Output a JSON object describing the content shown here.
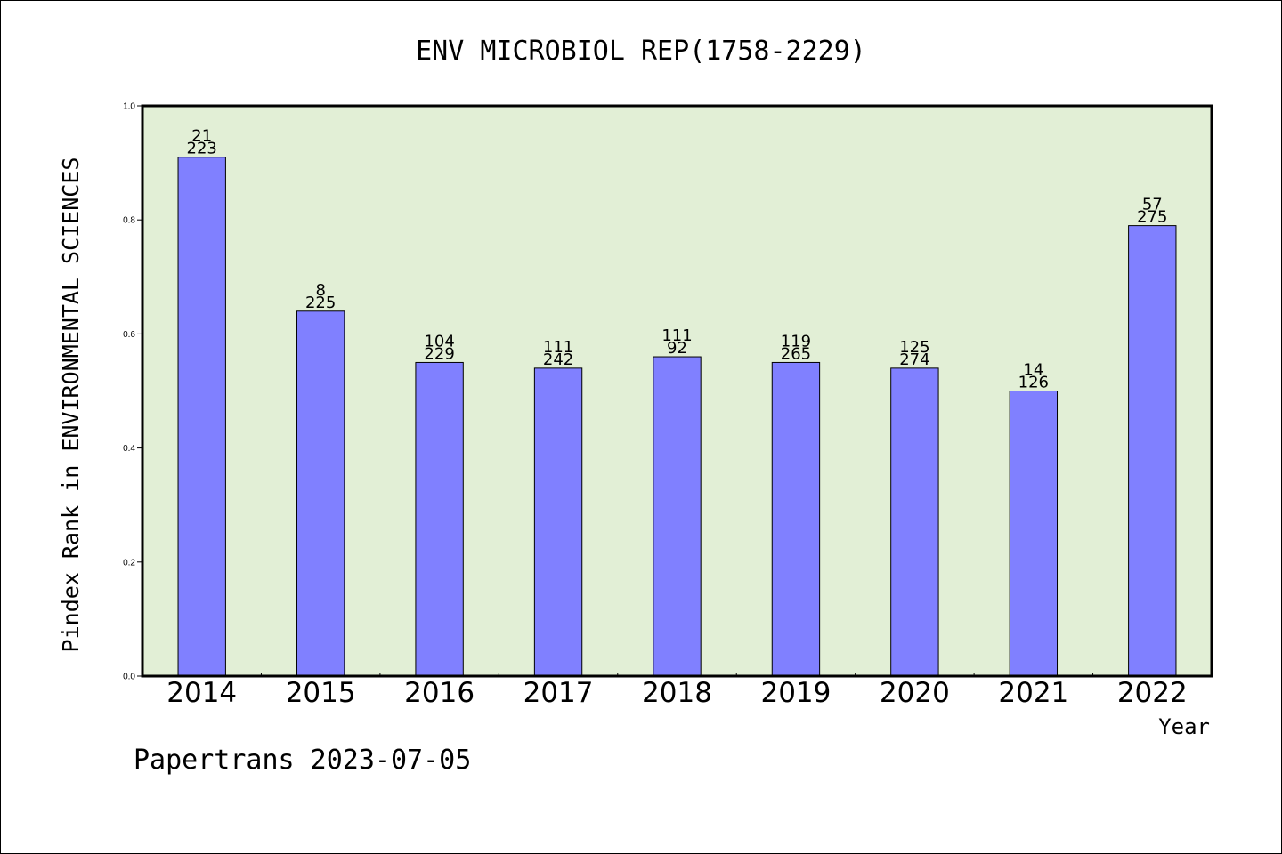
{
  "chart_data": {
    "type": "bar",
    "title": "ENV MICROBIOL REP(1758-2229)",
    "xlabel": "Year",
    "ylabel": "Pindex Rank in ENVIRONMENTAL SCIENCES",
    "ylim": [
      0,
      1.0
    ],
    "yticks": [
      "0.0",
      "0.2",
      "0.4",
      "0.6",
      "0.8",
      "1.0"
    ],
    "categories": [
      "2014",
      "2015",
      "2016",
      "2017",
      "2018",
      "2019",
      "2020",
      "2021",
      "2022"
    ],
    "values": [
      0.91,
      0.64,
      0.55,
      0.54,
      0.56,
      0.55,
      0.54,
      0.5,
      0.79
    ],
    "labels_top": [
      "21",
      "8",
      "104",
      "111",
      "111",
      "119",
      "125",
      "14",
      "57"
    ],
    "labels_bottom": [
      "223",
      "225",
      "229",
      "242",
      "92",
      "265",
      "274",
      "126",
      "275"
    ],
    "grid": false,
    "colors": {
      "plot_bg": "#e2efd6",
      "bar": "#8080ff",
      "bar_edge": "#000000"
    }
  },
  "footer": "Papertrans 2023-07-05"
}
